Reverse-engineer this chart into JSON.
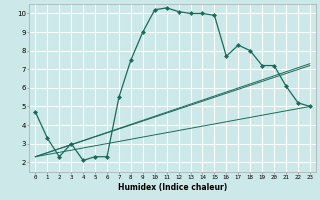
{
  "xlabel": "Humidex (Indice chaleur)",
  "bg_color": "#cce8e8",
  "grid_color": "#ffffff",
  "line_color": "#1a6b5a",
  "xlim": [
    -0.5,
    23.5
  ],
  "ylim": [
    1.5,
    10.5
  ],
  "yticks": [
    2,
    3,
    4,
    5,
    6,
    7,
    8,
    9,
    10
  ],
  "xticks": [
    0,
    1,
    2,
    3,
    4,
    5,
    6,
    7,
    8,
    9,
    10,
    11,
    12,
    13,
    14,
    15,
    16,
    17,
    18,
    19,
    20,
    21,
    22,
    23
  ],
  "curve1_x": [
    0,
    1,
    2,
    3,
    4,
    5,
    6,
    7,
    8,
    9,
    10,
    11,
    12,
    13,
    14,
    15,
    16,
    17,
    18,
    19,
    20,
    21,
    22,
    23
  ],
  "curve1_y": [
    4.7,
    3.3,
    2.3,
    3.0,
    2.1,
    2.3,
    2.3,
    5.5,
    7.5,
    9.0,
    10.2,
    10.3,
    10.1,
    10.0,
    10.0,
    9.9,
    7.7,
    8.3,
    8.0,
    7.2,
    7.2,
    6.1,
    5.2,
    5.0
  ],
  "line1_x": [
    0,
    23
  ],
  "line1_y": [
    2.3,
    5.0
  ],
  "line2_x": [
    0,
    23
  ],
  "line2_y": [
    2.3,
    7.2
  ],
  "line3_x": [
    0,
    23
  ],
  "line3_y": [
    2.3,
    7.3
  ]
}
